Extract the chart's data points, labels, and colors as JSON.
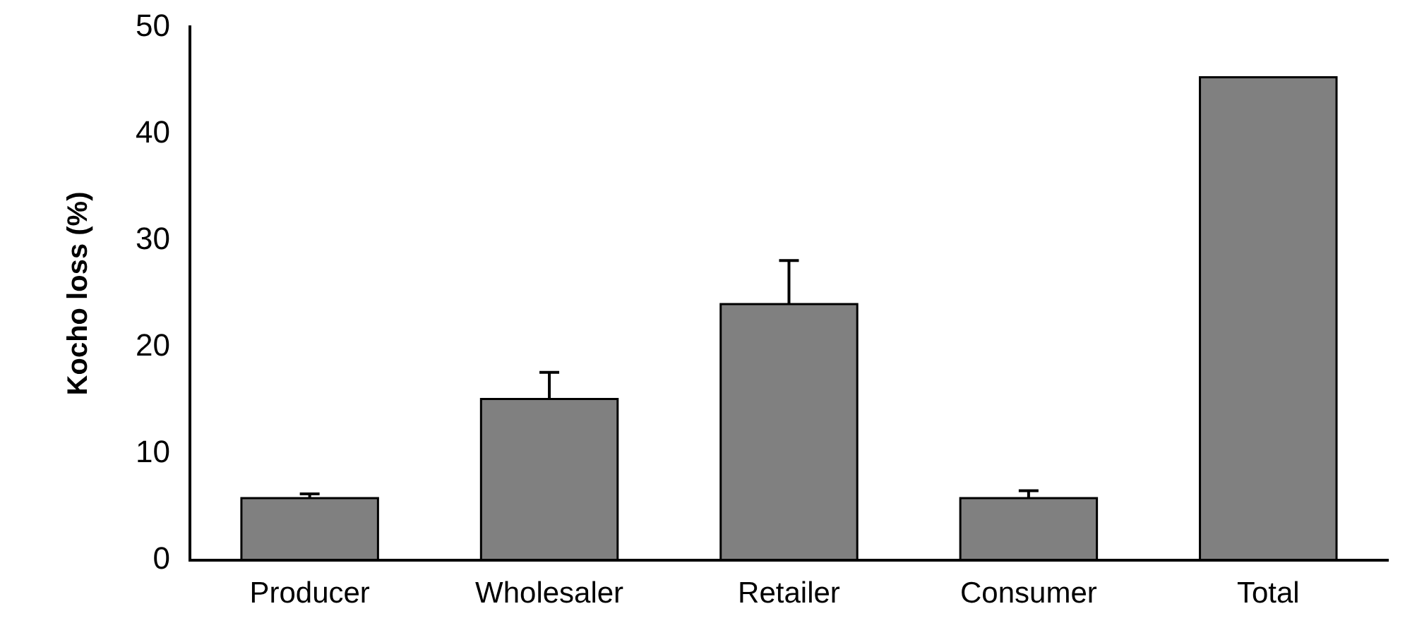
{
  "chart_data": {
    "type": "bar",
    "ylabel": "Kocho loss (%)",
    "categories": [
      "Producer",
      "Wholesaler",
      "Retailer",
      "Consumer",
      "Total"
    ],
    "values": [
      5.8,
      15.1,
      24.0,
      5.8,
      45.3
    ],
    "errors": [
      0.4,
      2.5,
      4.1,
      0.7,
      null
    ],
    "color": "#808080",
    "ylim": [
      0,
      50
    ],
    "yticks": [
      0,
      10,
      20,
      30,
      40,
      50
    ],
    "grid": false,
    "legend": false
  }
}
